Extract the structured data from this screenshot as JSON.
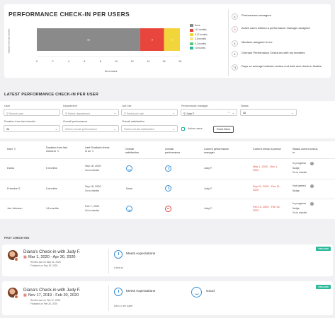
{
  "header": {
    "title": "PERFORMANCE CHECK-IN PER USERS"
  },
  "chart_data": {
    "type": "bar",
    "orientation": "horizontal",
    "ylabel": "Duration from last checkin",
    "xlabel": "No of users",
    "xticks": [
      "0",
      "2",
      "4",
      "6",
      "8",
      "10",
      "12",
      "14",
      "16",
      "18"
    ],
    "xlim": [
      0,
      18
    ],
    "series": [
      {
        "name": "None",
        "value": 13,
        "label": "13",
        "color": "#8a8a8a"
      },
      {
        "name": ">12 months",
        "value": 3,
        "label": "3",
        "color": "#e8453c"
      },
      {
        "name": "6-12 months",
        "value": 2,
        "label": "2",
        "color": "#f2d43b"
      },
      {
        "name": "3-6 months",
        "value": 0,
        "label": "",
        "color": "#f5e78a"
      },
      {
        "name": "0-3 months",
        "value": 0,
        "label": "",
        "color": "#58c97a"
      },
      {
        "name": "<0 months",
        "value": 0,
        "label": "",
        "color": "#2bb99a"
      }
    ]
  },
  "stats": [
    {
      "num": "4",
      "label": "Performance managers",
      "color": "#333"
    },
    {
      "num": "6",
      "label": "Active users without a performance manager assigned",
      "color": "#e0433c"
    },
    {
      "num": "4",
      "label": "Mentees assigned to me",
      "color": "#333"
    },
    {
      "num": "4",
      "label": "Overdue Performance Check-ins with my mentees",
      "color": "#333"
    },
    {
      "num": "71",
      "label": "Days on average between review end date and check-in finalize",
      "color": "#333"
    }
  ],
  "latest": {
    "title": "LATEST PERFORMANCE CHECK-IN PER USER",
    "filters": {
      "user": {
        "label": "User",
        "placeholder": "Search user"
      },
      "department": {
        "label": "Department",
        "placeholder": "Select department"
      },
      "job_role": {
        "label": "Job role",
        "placeholder": "Select job role"
      },
      "manager": {
        "label": "Performance manager",
        "value": "Judy F."
      },
      "status": {
        "label": "Status",
        "value": "All"
      },
      "duration": {
        "label": "Duration from last checkin",
        "value": "All"
      },
      "overall_performance": {
        "label": "Overall performance",
        "placeholder": "Select overall performance"
      },
      "overall_satisfaction": {
        "label": "Overall satisfaction",
        "placeholder": "Select overall satisfaction"
      },
      "active_users": "Active users",
      "reset": "Reset filters"
    },
    "columns": [
      "User",
      "Duration from last check-in",
      "Last Finalized check-in on",
      "Overall satisfaction",
      "Overall performance",
      "Current performance manager",
      "Current check-in period",
      "Status current check-in"
    ],
    "rows": [
      {
        "user": "Diana",
        "duration": "6 months",
        "last": "Sep 18, 2020",
        "goto": "Go to checkin",
        "satisfaction": "",
        "manager": "Judy F.",
        "period": "May 1, 2020 - Nov 1, 2020",
        "period_red": true,
        "status": "In progress",
        "nudge": "Nudge",
        "goto2": "Go to checkin"
      },
      {
        "user": "Francine S",
        "duration": "6 months",
        "last": "Sep 18, 2020",
        "goto": "Go to checkin",
        "satisfaction": "None",
        "manager": "Judy F.",
        "period": "Sep 01, 2020 - Dec 11, 2020",
        "period_red": true,
        "status": "Not started",
        "nudge": "Nudge",
        "goto2": ""
      },
      {
        "user": "Joe Johnson",
        "duration": "14 months",
        "last": "Feb 7, 2020",
        "goto": "Go to checkin",
        "satisfaction": "",
        "manager": "Judy F.",
        "period": "Feb 12, 2020 - Feb 15, 2020",
        "period_red": true,
        "status": "In progress",
        "nudge": "Nudge",
        "goto2": "Go to checkin"
      }
    ]
  },
  "past": {
    "title": "PAST CHECK-INS",
    "cards": [
      {
        "title": "Diana's Check-in with Judy F.",
        "dates": "Mar 1, 2020 - Apr 30, 2020",
        "review_due": "Review due on May 31, 2020",
        "finalized": "Finalized on Sep 18, 2020",
        "perf": "Meets expectations",
        "note": "a fool ok",
        "badge": "FINALIZED",
        "satisfaction": ""
      },
      {
        "title": "Diana's Check-in with Judy F.",
        "dates": "Nov 17, 2019 - Feb 20, 2020",
        "review_due": "Review due on Feb 17, 2020",
        "finalized": "Finalized on Feb 20, 2020",
        "perf": "Meets expectations",
        "note": "told u u are super",
        "badge": "FINALIZED",
        "satisfaction": "Good"
      }
    ]
  }
}
